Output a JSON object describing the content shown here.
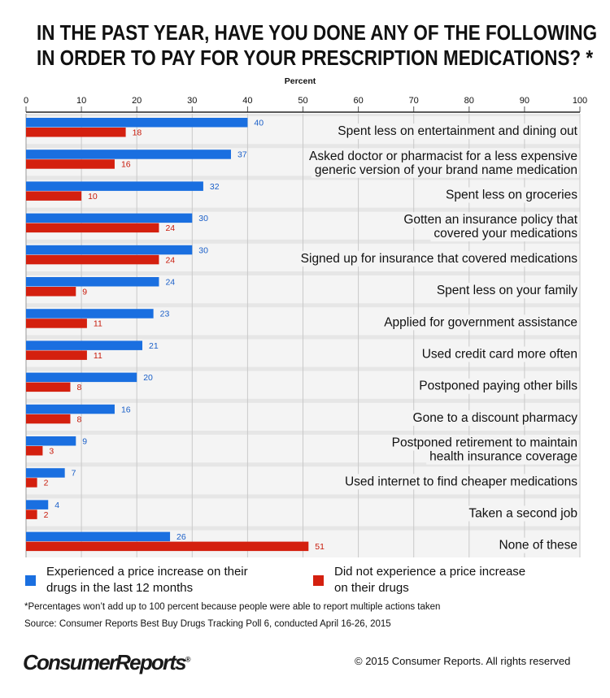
{
  "title": {
    "line1": "IN THE PAST YEAR, HAVE YOU DONE ANY OF THE FOLLOWING",
    "line2": "IN ORDER TO PAY FOR YOUR PRESCRIPTION MEDICATIONS? *"
  },
  "chart_data": {
    "type": "bar",
    "orientation": "horizontal",
    "xlabel": "Percent",
    "xlim": [
      0,
      100
    ],
    "xticks": [
      0,
      10,
      20,
      30,
      40,
      50,
      60,
      70,
      80,
      90,
      100
    ],
    "grid": true,
    "categories": [
      [
        "Spent less on entertainment and dining out"
      ],
      [
        "Asked doctor or pharmacist for a less expensive",
        "generic version of your brand name medication"
      ],
      [
        "Spent less on groceries"
      ],
      [
        "Gotten an insurance policy that",
        "covered your medications"
      ],
      [
        "Signed up for insurance that covered medications"
      ],
      [
        "Spent less on your family"
      ],
      [
        "Applied for government assistance"
      ],
      [
        "Used credit card more often"
      ],
      [
        "Postponed paying other bills"
      ],
      [
        "Gone to a discount pharmacy"
      ],
      [
        "Postponed retirement to maintain",
        "health insurance coverage"
      ],
      [
        "Used internet to find cheaper medications"
      ],
      [
        "Taken a second job"
      ],
      [
        "None of these"
      ]
    ],
    "series": [
      {
        "name": "Experienced a price increase on their drugs in the last 12 months",
        "color": "#1a6fe0",
        "label_color": "#1a5fc8",
        "values": [
          40,
          37,
          32,
          30,
          30,
          24,
          23,
          21,
          20,
          16,
          9,
          7,
          4,
          26
        ]
      },
      {
        "name": "Did not experience a price increase on their drugs",
        "color": "#d4200f",
        "label_color": "#c81a0a",
        "values": [
          18,
          16,
          10,
          24,
          24,
          9,
          11,
          11,
          8,
          8,
          3,
          2,
          2,
          51
        ]
      }
    ]
  },
  "legend": {
    "series1_line1": "Experienced a price increase on their",
    "series1_line2": "drugs in the last 12 months",
    "series2_line1": "Did not experience a price increase",
    "series2_line2": "on their drugs"
  },
  "footnote": "*Percentages won’t add up to 100 percent because people were able to report multiple actions taken",
  "source": "Source: Consumer Reports Best Buy Drugs Tracking Poll 6, conducted April 16-26, 2015",
  "logo": "ConsumerReports",
  "logo_mark": "®",
  "copyright": "© 2015 Consumer Reports. All rights reserved"
}
